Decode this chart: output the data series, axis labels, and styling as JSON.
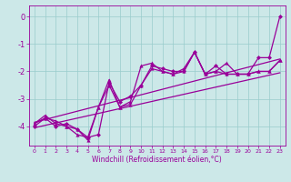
{
  "bg_color": "#cce8e8",
  "grid_color": "#99cccc",
  "line_color": "#990099",
  "xlim": [
    -0.5,
    23.5
  ],
  "ylim": [
    -4.7,
    0.4
  ],
  "xticks": [
    0,
    1,
    2,
    3,
    4,
    5,
    6,
    7,
    8,
    9,
    10,
    11,
    12,
    13,
    14,
    15,
    16,
    17,
    18,
    19,
    20,
    21,
    22,
    23
  ],
  "yticks": [
    0,
    -1,
    -2,
    -3,
    -4
  ],
  "xlabel": "Windchill (Refroidissement éolien,°C)",
  "series1_x": [
    0,
    1,
    2,
    3,
    4,
    5,
    6,
    7,
    8,
    9,
    10,
    11,
    12,
    13,
    14,
    15,
    16,
    17,
    18,
    19,
    20,
    21,
    22,
    23
  ],
  "series1_y": [
    -3.9,
    -3.6,
    -3.9,
    -4.0,
    -4.3,
    -4.4,
    -3.3,
    -2.5,
    -3.3,
    -3.1,
    -1.8,
    -1.7,
    -2.0,
    -2.1,
    -2.0,
    -1.3,
    -2.1,
    -2.0,
    -1.7,
    -2.1,
    -2.1,
    -2.0,
    -2.0,
    -1.6
  ],
  "series2_x": [
    0,
    1,
    2,
    3,
    4,
    5,
    6,
    7,
    8,
    9,
    10,
    11,
    12,
    13,
    14,
    15,
    16,
    17,
    18,
    19,
    20,
    21,
    22,
    23
  ],
  "series2_y": [
    -4.0,
    -3.7,
    -4.0,
    -3.9,
    -4.1,
    -4.4,
    -4.3,
    -2.4,
    -3.1,
    -2.9,
    -2.5,
    -1.8,
    -1.9,
    -2.0,
    -2.0,
    -1.3,
    -2.1,
    -1.8,
    -2.1,
    -2.1,
    -2.1,
    -1.5,
    -1.5,
    0.0
  ],
  "series3_x": [
    0,
    1,
    2,
    3,
    4,
    5,
    6,
    7,
    8,
    9,
    10,
    11,
    12,
    13,
    14,
    15,
    16,
    17,
    18,
    19,
    20,
    21,
    22,
    23
  ],
  "series3_y": [
    -3.9,
    -3.7,
    -3.8,
    -4.0,
    -4.1,
    -4.5,
    -3.3,
    -2.3,
    -3.3,
    -3.2,
    -2.5,
    -1.9,
    -2.0,
    -2.1,
    -1.9,
    -1.3,
    -2.1,
    -2.0,
    -2.1,
    -2.1,
    -2.1,
    -2.0,
    -2.0,
    -1.6
  ],
  "trend1_x": [
    0,
    23
  ],
  "trend1_y": [
    -4.05,
    -2.05
  ],
  "trend2_x": [
    0,
    23
  ],
  "trend2_y": [
    -3.85,
    -1.55
  ]
}
